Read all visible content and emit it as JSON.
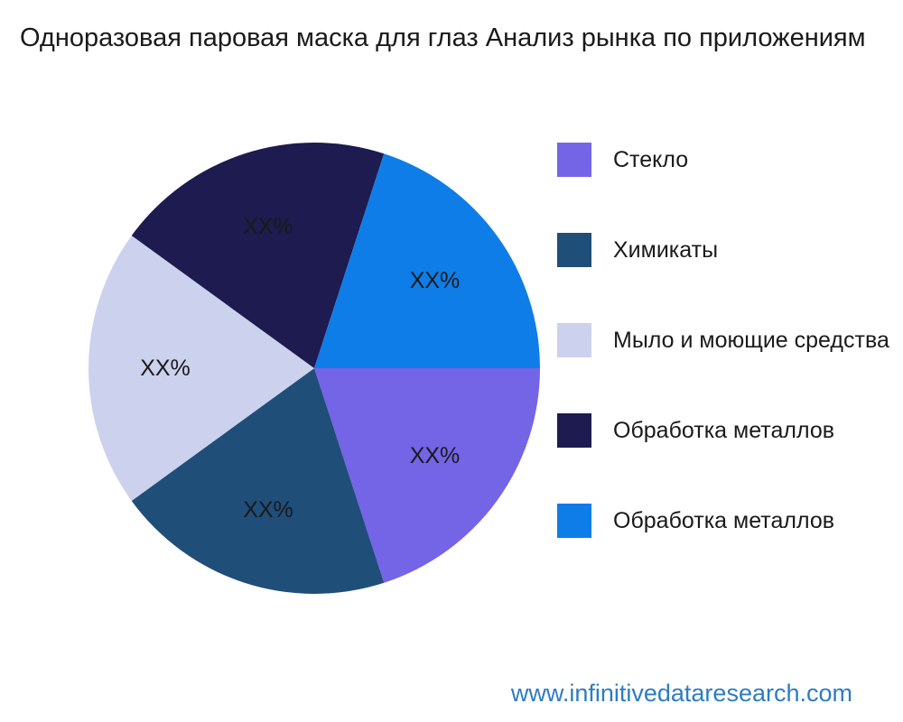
{
  "title": "Одноразовая паровая маска для глаз Анализ рынка по приложениям",
  "website": "www.infinitivedataresearch.com",
  "colors": {
    "title_text": "#1a1a1a",
    "website_text": "#2e7cc3",
    "background": "#ffffff"
  },
  "chart_data": {
    "type": "pie",
    "title": "Одноразовая паровая маска для глаз Анализ рынка по приложениям",
    "legend_position": "right",
    "start_angle_deg": 0,
    "direction": "clockwise",
    "values_shown_as_placeholders": true,
    "slices": [
      {
        "label": "Стекло",
        "value": 20,
        "display": "XX%",
        "color": "#7464e6"
      },
      {
        "label": "Химикаты",
        "value": 20,
        "display": "XX%",
        "color": "#1f4e79"
      },
      {
        "label": "Мыло и моющие средства",
        "value": 20,
        "display": "XX%",
        "color": "#ccd1ed"
      },
      {
        "label": "Обработка металлов",
        "value": 20,
        "display": "XX%",
        "color": "#1d1b4f"
      },
      {
        "label": "Обработка металлов",
        "value": 20,
        "display": "XX%",
        "color": "#0e7de8"
      }
    ]
  }
}
